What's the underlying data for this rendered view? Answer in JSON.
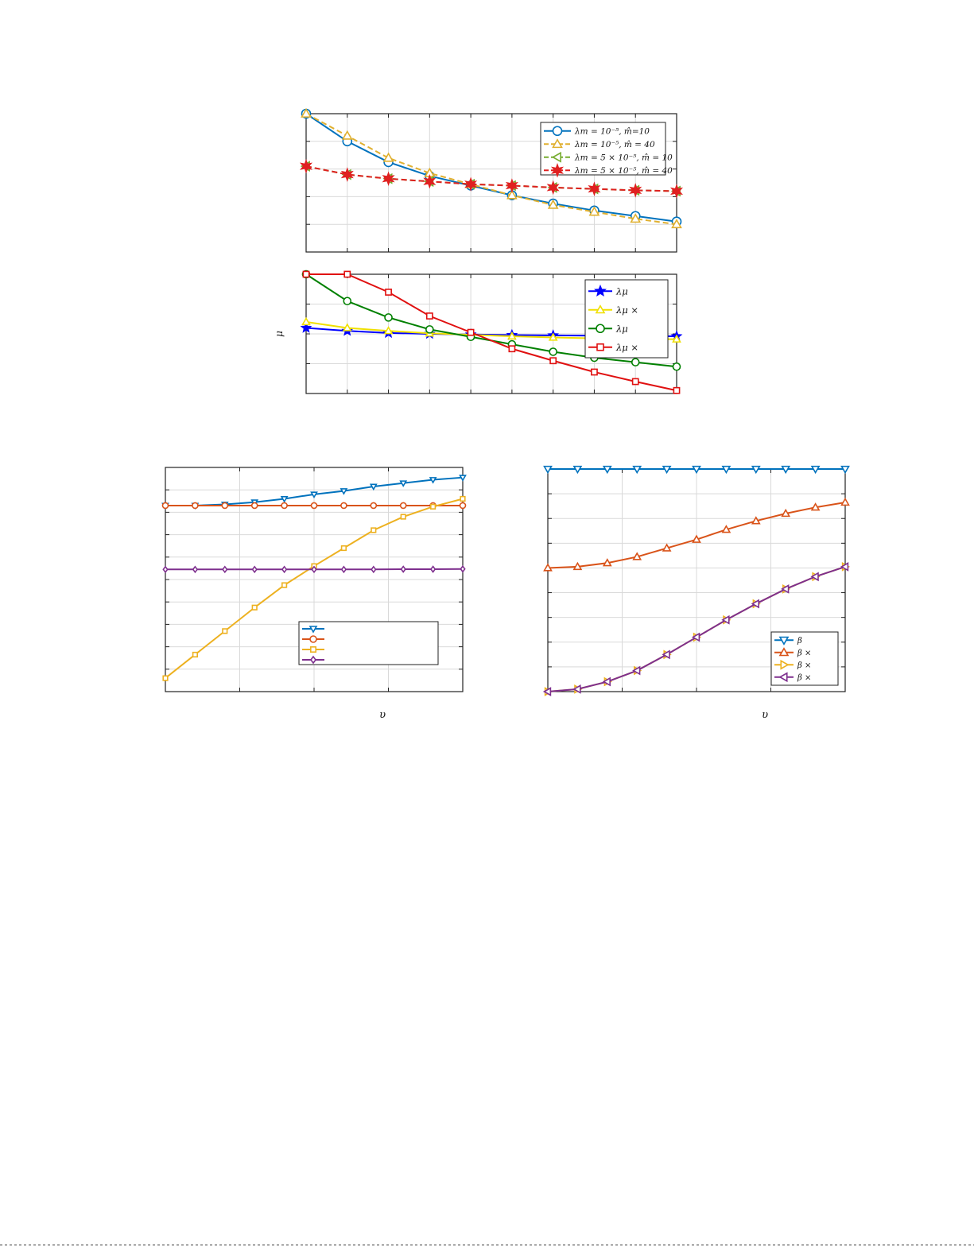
{
  "chart_data": [
    {
      "id": "top",
      "type": "line",
      "title": "",
      "xlabel": "",
      "ylabel": "",
      "x": [
        1,
        2,
        3,
        4,
        5,
        6,
        7,
        8,
        9,
        10
      ],
      "xlim": [
        1,
        10
      ],
      "ylim": [
        0,
        5
      ],
      "grid": true,
      "legend_position": "top-right",
      "series": [
        {
          "name": "λm = 10⁻⁵, m̂=10",
          "color": "#0072bd",
          "marker": "circle",
          "dash": "solid",
          "values": [
            5.0,
            4.0,
            3.25,
            2.75,
            2.4,
            2.05,
            1.75,
            1.5,
            1.3,
            1.1
          ]
        },
        {
          "name": "λm = 10⁻⁵, m̂ = 40",
          "color": "#e0b030",
          "marker": "triangle-up",
          "dash": "dashed",
          "values": [
            5.0,
            4.2,
            3.4,
            2.85,
            2.45,
            2.05,
            1.7,
            1.45,
            1.2,
            1.0
          ]
        },
        {
          "name": "λm = 5 × 10⁻⁵, m̂ = 10",
          "color": "#77ac30",
          "marker": "triangle-left",
          "dash": "dashed",
          "values": [
            3.1,
            2.8,
            2.65,
            2.55,
            2.45,
            2.4,
            2.33,
            2.28,
            2.23,
            2.2
          ]
        },
        {
          "name": "λm = 5 × 10⁻⁵, m̂ = 40",
          "color": "#e02020",
          "marker": "hexagram",
          "dash": "dashed",
          "values": [
            3.1,
            2.8,
            2.65,
            2.55,
            2.45,
            2.4,
            2.33,
            2.28,
            2.23,
            2.2
          ]
        }
      ]
    },
    {
      "id": "middle",
      "type": "line",
      "title": "",
      "xlabel": "",
      "ylabel": "μ",
      "x": [
        1,
        2,
        3,
        4,
        5,
        6,
        7,
        8,
        9,
        10
      ],
      "xlim": [
        1,
        10
      ],
      "ylim": [
        0,
        4
      ],
      "grid": true,
      "legend_position": "top-right",
      "series": [
        {
          "name": "λμ",
          "color": "#0000ff",
          "marker": "pentagram",
          "dash": "solid",
          "values": [
            2.2,
            2.1,
            2.03,
            2.0,
            1.98,
            1.96,
            1.95,
            1.94,
            1.93,
            1.92
          ]
        },
        {
          "name": "λμ ×",
          "color": "#f0e000",
          "marker": "triangle-up",
          "dash": "solid",
          "values": [
            2.4,
            2.2,
            2.1,
            2.02,
            1.97,
            1.92,
            1.88,
            1.85,
            1.83,
            1.82
          ]
        },
        {
          "name": "λμ",
          "color": "#008000",
          "marker": "circle",
          "dash": "solid",
          "values": [
            4.0,
            3.1,
            2.55,
            2.15,
            1.9,
            1.65,
            1.4,
            1.2,
            1.05,
            0.9
          ]
        },
        {
          "name": "λμ ×",
          "color": "#e01010",
          "marker": "square",
          "dash": "solid",
          "values": [
            4.0,
            4.0,
            3.4,
            2.6,
            2.05,
            1.5,
            1.1,
            0.72,
            0.4,
            0.1
          ]
        }
      ]
    },
    {
      "id": "bottom-left",
      "type": "line",
      "title": "",
      "xlabel": "υ",
      "ylabel": "",
      "x": [
        0,
        1,
        2,
        3,
        4,
        5,
        6,
        7,
        8,
        9,
        10
      ],
      "xlim": [
        0,
        10
      ],
      "ylim": [
        0,
        10
      ],
      "grid": true,
      "legend_position": "bottom-right",
      "series": [
        {
          "name": "",
          "color": "#0072bd",
          "marker": "triangle-down",
          "dash": "solid",
          "values": [
            8.3,
            8.3,
            8.35,
            8.45,
            8.6,
            8.8,
            8.95,
            9.15,
            9.3,
            9.45,
            9.55
          ]
        },
        {
          "name": "",
          "color": "#d95319",
          "marker": "circle",
          "dash": "solid",
          "values": [
            8.3,
            8.3,
            8.3,
            8.3,
            8.3,
            8.3,
            8.3,
            8.3,
            8.3,
            8.3,
            8.3
          ]
        },
        {
          "name": "",
          "color": "#edb120",
          "marker": "square",
          "dash": "solid",
          "values": [
            0.6,
            1.65,
            2.7,
            3.75,
            4.75,
            5.6,
            6.4,
            7.2,
            7.8,
            8.25,
            8.6
          ]
        },
        {
          "name": "",
          "color": "#7e2f8e",
          "marker": "diamond",
          "dash": "solid",
          "values": [
            5.45,
            5.45,
            5.45,
            5.45,
            5.45,
            5.45,
            5.45,
            5.45,
            5.46,
            5.46,
            5.47
          ]
        }
      ]
    },
    {
      "id": "bottom-right",
      "type": "line",
      "title": "",
      "xlabel": "υ",
      "ylabel": "",
      "x": [
        0,
        1,
        2,
        3,
        4,
        5,
        6,
        7,
        8,
        9,
        10
      ],
      "xlim": [
        0,
        10
      ],
      "ylim": [
        0,
        9
      ],
      "grid": true,
      "legend_position": "bottom-right",
      "series": [
        {
          "name": "β",
          "color": "#0072bd",
          "marker": "triangle-down",
          "dash": "solid",
          "values": [
            9.0,
            9.0,
            9.0,
            9.0,
            9.0,
            9.0,
            9.0,
            9.0,
            9.0,
            9.0,
            9.0
          ]
        },
        {
          "name": "β ×",
          "color": "#d95319",
          "marker": "triangle-up",
          "dash": "solid",
          "values": [
            5.0,
            5.05,
            5.2,
            5.45,
            5.8,
            6.15,
            6.55,
            6.9,
            7.2,
            7.45,
            7.65
          ]
        },
        {
          "name": "β ×",
          "color": "#edb120",
          "marker": "triangle-right",
          "dash": "solid",
          "values": [
            0.0,
            0.1,
            0.4,
            0.85,
            1.5,
            2.2,
            2.9,
            3.55,
            4.15,
            4.65,
            5.05
          ]
        },
        {
          "name": "β ×",
          "color": "#7e2f8e",
          "marker": "triangle-left",
          "dash": "solid",
          "values": [
            0.0,
            0.1,
            0.4,
            0.85,
            1.5,
            2.2,
            2.9,
            3.55,
            4.15,
            4.65,
            5.05
          ]
        }
      ]
    }
  ]
}
